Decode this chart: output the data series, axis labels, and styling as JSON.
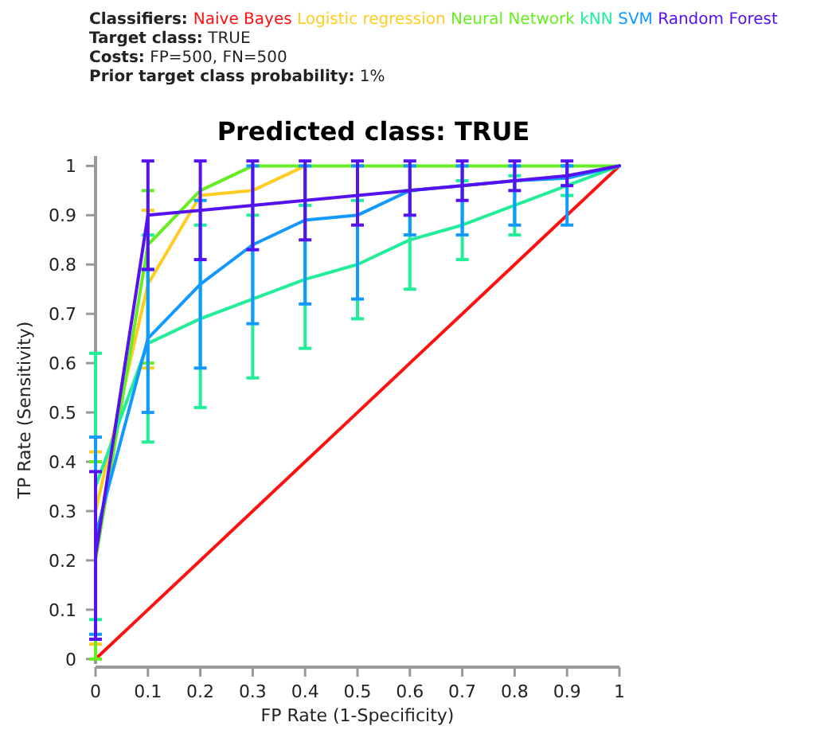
{
  "chart_data": {
    "type": "line",
    "title": "Predicted class: TRUE",
    "xlabel": "FP Rate (1-Specificity)",
    "ylabel": "TP Rate (Sensitivity)",
    "legend_title": "Classifiers:",
    "legend": "top",
    "annotations": [
      "Target class: TRUE",
      "Costs: FP=500, FN=500",
      "Prior target class probability: 1%"
    ],
    "x": [
      0,
      0.1,
      0.2,
      0.3,
      0.4,
      0.5,
      0.6,
      0.7,
      0.8,
      0.9,
      1
    ],
    "xlim": [
      0,
      1
    ],
    "xticks": [
      0,
      0.1,
      0.2,
      0.3,
      0.4,
      0.5,
      0.6,
      0.7,
      0.8,
      0.9,
      1
    ],
    "ylim": [
      -0.01,
      1.02
    ],
    "yticks": [
      0,
      0.1,
      0.2,
      0.3,
      0.4,
      0.5,
      0.6,
      0.7,
      0.8,
      0.9,
      1
    ],
    "grid": false,
    "marker": "none",
    "series": [
      {
        "name": "Naive Bayes",
        "color": "#ff1111",
        "values": [
          0,
          0.1,
          0.2,
          0.3,
          0.4,
          0.5,
          0.6,
          0.7,
          0.8,
          0.9,
          1
        ]
      },
      {
        "name": "Logistic regression",
        "color": "#ffcc22",
        "values": [
          0.3,
          0.76,
          0.94,
          0.95,
          1,
          null,
          null,
          null,
          null,
          null,
          null
        ],
        "errors": [
          [
            0.03,
            0.42
          ],
          [
            0.59,
            0.91
          ],
          null,
          null,
          null,
          null,
          null,
          null,
          null,
          null,
          null
        ]
      },
      {
        "name": "Neural Network",
        "color": "#66ee22",
        "values": [
          0.2,
          0.84,
          0.95,
          1,
          1,
          1,
          1,
          1,
          1,
          1,
          1
        ],
        "errors": [
          [
            0,
            0.4
          ],
          [
            0.6,
            0.95
          ],
          null,
          null,
          null,
          null,
          null,
          null,
          null,
          null,
          null
        ]
      },
      {
        "name": "kNN",
        "color": "#22ee99",
        "values": [
          0.35,
          0.64,
          0.69,
          0.73,
          0.77,
          0.8,
          0.85,
          0.88,
          0.92,
          0.96,
          1
        ],
        "errors": [
          [
            0.08,
            0.62
          ],
          [
            0.44,
            0.86
          ],
          [
            0.51,
            0.88
          ],
          [
            0.57,
            0.9
          ],
          [
            0.63,
            0.92
          ],
          [
            0.69,
            0.93
          ],
          [
            0.75,
            0.95
          ],
          [
            0.81,
            0.97
          ],
          [
            0.86,
            0.98
          ],
          [
            0.94,
            1
          ],
          null
        ]
      },
      {
        "name": "SVM",
        "color": "#1199ff",
        "values": [
          0.25,
          0.65,
          0.76,
          0.84,
          0.89,
          0.9,
          0.95,
          0.96,
          0.97,
          0.975,
          1
        ],
        "errors": [
          [
            0.05,
            0.45
          ],
          [
            0.5,
            0.79
          ],
          [
            0.59,
            0.93
          ],
          [
            0.68,
            1
          ],
          [
            0.72,
            1
          ],
          [
            0.73,
            1
          ],
          [
            0.86,
            1
          ],
          [
            0.86,
            1
          ],
          [
            0.88,
            1
          ],
          [
            0.88,
            1
          ],
          null
        ]
      },
      {
        "name": "Random Forest",
        "color": "#5511ee",
        "values": [
          0.21,
          0.9,
          0.91,
          0.92,
          0.93,
          0.94,
          0.95,
          0.96,
          0.97,
          0.98,
          1
        ],
        "errors": [
          [
            0.04,
            0.38
          ],
          [
            0.79,
            1.01
          ],
          [
            0.81,
            1.01
          ],
          [
            0.83,
            1.01
          ],
          [
            0.85,
            1.01
          ],
          [
            0.88,
            1.01
          ],
          [
            0.9,
            1.01
          ],
          [
            0.93,
            1.01
          ],
          [
            0.95,
            1.01
          ],
          [
            0.96,
            1.01
          ],
          null
        ]
      }
    ]
  }
}
